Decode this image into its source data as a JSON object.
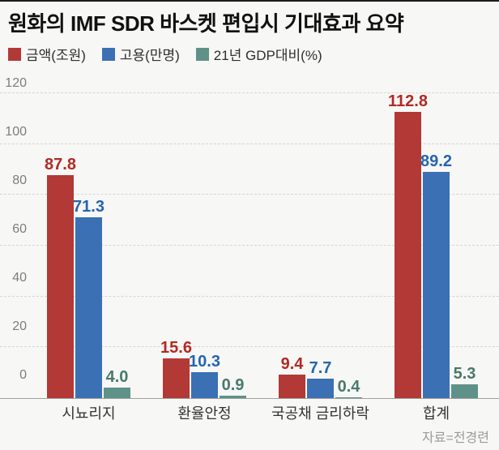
{
  "title": "원화의 IMF SDR 바스켓 편입시 기대효과 요약",
  "source": "자료=전경련",
  "colors": {
    "background": "#f7f7f5",
    "top_border": "#1b1b1b",
    "gridline": "#d6d6d3",
    "baseline": "#a0a09e",
    "ytick_text": "#7d7d7b",
    "category_text": "#333333",
    "source_text": "#9b9b99"
  },
  "chart_data": {
    "type": "bar",
    "title": "원화의 IMF SDR 바스켓 편입시 기대효과 요약",
    "categories": [
      "시뇨리지",
      "환율안정",
      "국공채 금리하락",
      "합계"
    ],
    "series": [
      {
        "name": "금액(조원)",
        "color": "#b23936",
        "label_color": "#b02a24",
        "values": [
          87.8,
          15.6,
          9.4,
          112.8
        ]
      },
      {
        "name": "고용(만명)",
        "color": "#3b70b4",
        "label_color": "#2565b0",
        "values": [
          71.3,
          10.3,
          7.7,
          89.2
        ]
      },
      {
        "name": "21년 GDP대비(%)",
        "color": "#5e9289",
        "label_color": "#49796e",
        "values": [
          4.0,
          0.9,
          0.4,
          5.3
        ]
      }
    ],
    "ylim": [
      0,
      120
    ],
    "yticks": [
      0,
      20,
      40,
      60,
      80,
      100,
      120
    ],
    "grid": "horizontal-dashed",
    "legend_position": "top-left",
    "value_labels": "one-decimal, colored per series, above bars",
    "source": "자료=전경련"
  }
}
